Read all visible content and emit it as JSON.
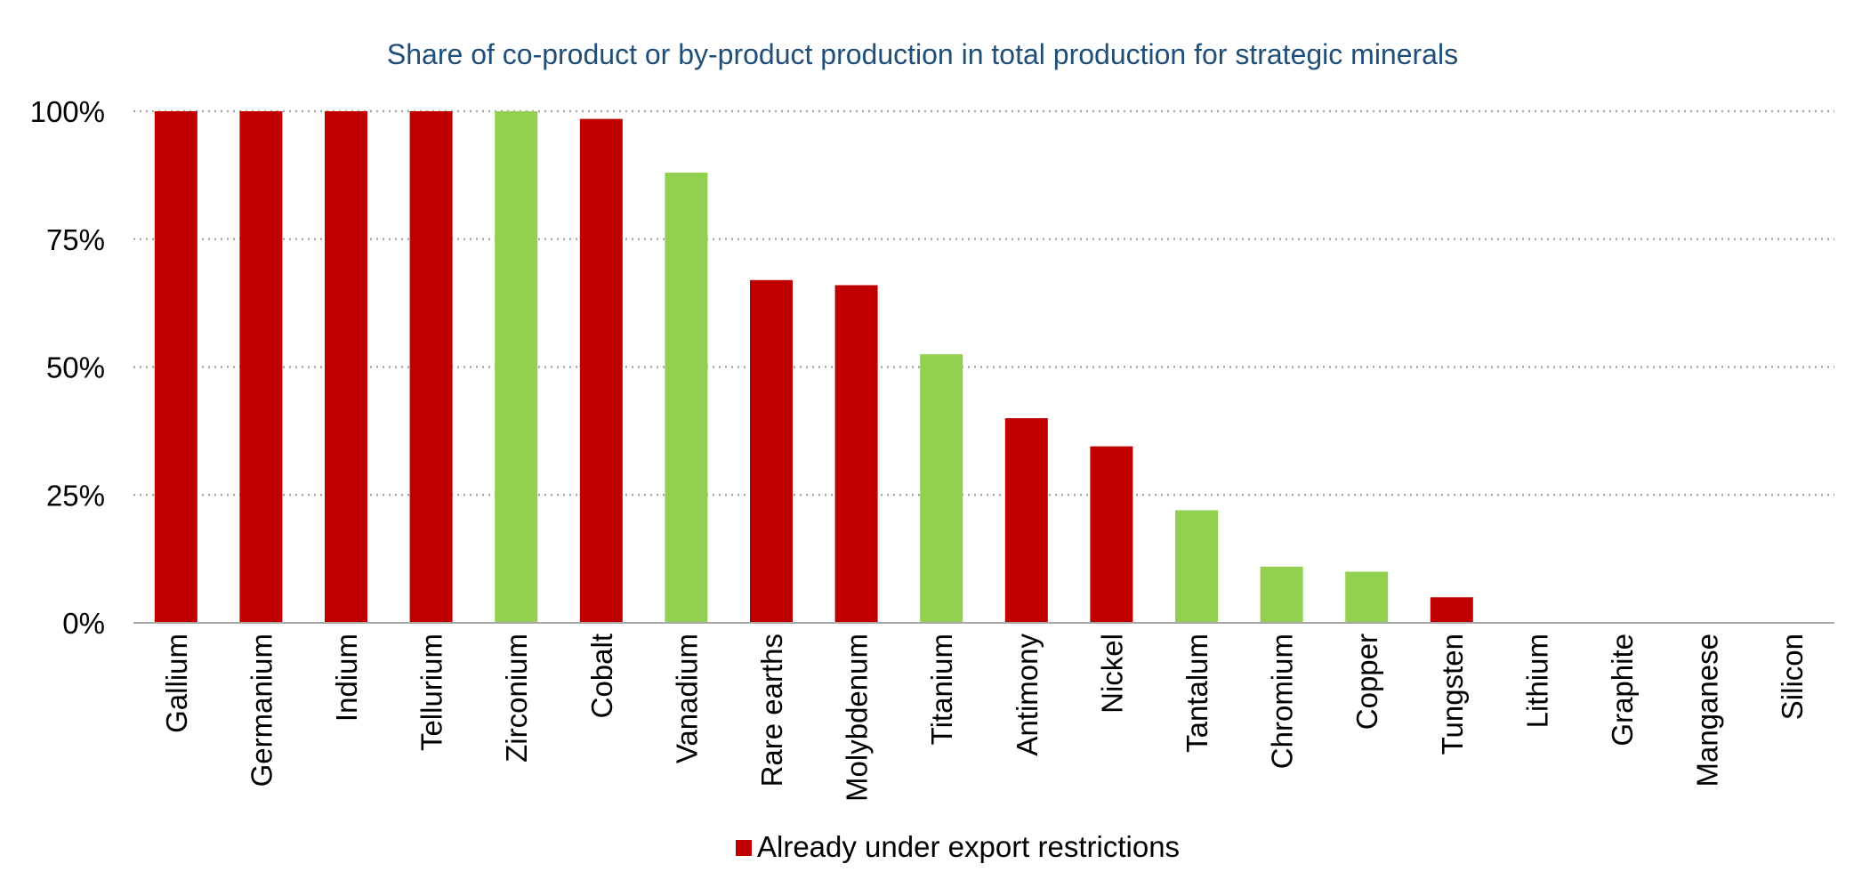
{
  "chart_data": {
    "type": "bar",
    "title": "Share of co-product or by-product production in total production for strategic minerals",
    "xlabel": "",
    "ylabel": "",
    "ylim": [
      0,
      100
    ],
    "yticks": [
      {
        "value": 0,
        "label": "0%"
      },
      {
        "value": 25,
        "label": "25%"
      },
      {
        "value": 50,
        "label": "50%"
      },
      {
        "value": 75,
        "label": "75%"
      },
      {
        "value": 100,
        "label": "100%"
      }
    ],
    "grid": true,
    "categories": [
      "Gallium",
      "Germanium",
      "Indium",
      "Tellurium",
      "Zirconium",
      "Cobalt",
      "Vanadium",
      "Rare earths",
      "Molybdenum",
      "Titanium",
      "Antimony",
      "Nickel",
      "Tantalum",
      "Chromium",
      "Copper",
      "Tungsten",
      "Lithium",
      "Graphite",
      "Manganese",
      "Silicon"
    ],
    "values": [
      100,
      100,
      100,
      100,
      100,
      98.5,
      88,
      67,
      66,
      52.5,
      40,
      34.5,
      22,
      11,
      10,
      5,
      0,
      0,
      0,
      0
    ],
    "restricted": [
      true,
      true,
      true,
      true,
      false,
      true,
      false,
      true,
      true,
      false,
      true,
      true,
      false,
      false,
      false,
      true,
      false,
      false,
      false,
      false
    ],
    "legend": {
      "position": "bottom-center",
      "entries": [
        {
          "label": "Already under export restrictions",
          "color": "#c00000"
        }
      ]
    }
  },
  "colors": {
    "restricted": "#c00000",
    "other": "#92d050",
    "title": "#1f4e79"
  }
}
